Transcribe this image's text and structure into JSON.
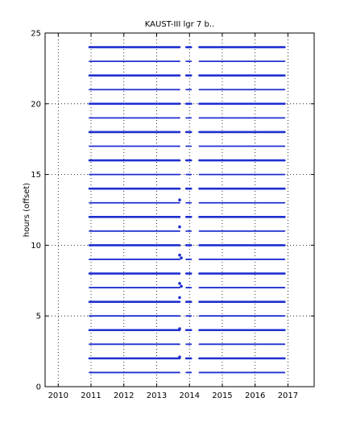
{
  "chart_data": {
    "type": "scatter",
    "title": "KAUST-III  lgr 7 b..",
    "xlabel": "",
    "ylabel": "hours (offset)",
    "xlim": [
      2009.6,
      2017.8
    ],
    "ylim": [
      0,
      25
    ],
    "xticks": [
      2010,
      2011,
      2012,
      2013,
      2014,
      2015,
      2016,
      2017
    ],
    "xtick_labels": [
      "2010",
      "2011",
      "2012",
      "2013",
      "2014",
      "2015",
      "2016",
      "2017"
    ],
    "yticks": [
      0,
      5,
      10,
      15,
      20,
      25
    ],
    "ytick_labels": [
      "0",
      "5",
      "10",
      "15",
      "20",
      "25"
    ],
    "grid": true,
    "series_color": "#1f2fd0",
    "series": [
      {
        "rows": [
          1,
          2,
          3,
          4,
          5,
          6,
          7,
          8,
          9,
          10,
          11,
          12,
          13,
          14,
          15,
          16,
          17,
          18,
          19,
          20,
          21,
          22,
          23,
          24
        ],
        "segments": [
          [
            2010.95,
            2013.7
          ],
          [
            2013.9,
            2014.05
          ],
          [
            2014.3,
            2016.9
          ]
        ]
      }
    ],
    "isolated_points": [
      {
        "x": 2013.7,
        "y": 13.2
      },
      {
        "x": 2013.7,
        "y": 11.3
      },
      {
        "x": 2013.7,
        "y": 9.3
      },
      {
        "x": 2013.75,
        "y": 9.1
      },
      {
        "x": 2013.7,
        "y": 7.3
      },
      {
        "x": 2013.75,
        "y": 7.1
      },
      {
        "x": 2013.7,
        "y": 6.3
      },
      {
        "x": 2013.7,
        "y": 4.1
      },
      {
        "x": 2013.7,
        "y": 2.1
      }
    ]
  }
}
